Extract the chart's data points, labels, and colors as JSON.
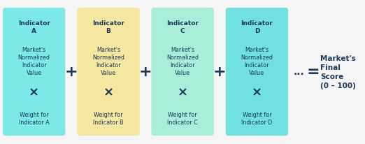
{
  "boxes": [
    {
      "label": "A",
      "color": "#7DE8E8",
      "title": "Indicator\nA",
      "body": "Market's\nNormalized\nIndicator\nValue",
      "times": "×",
      "weight": "Weight for\nIndicator A"
    },
    {
      "label": "B",
      "color": "#F5E6A0",
      "title": "Indicator\nB",
      "body": "Market's\nNormalized\nIndicator\nValue",
      "times": "×",
      "weight": "Weight for\nIndicator B"
    },
    {
      "label": "C",
      "color": "#A8EED8",
      "title": "Indicator\nC",
      "body": "Market's\nNormalized\nIndicator\nValue",
      "times": "×",
      "weight": "Weight for\nIndicator C"
    },
    {
      "label": "D",
      "color": "#70E0E0",
      "title": "Indicator\nD",
      "body": "Market's\nNormalized\nIndicator\nValue",
      "times": "×",
      "weight": "Weight for\nIndicator D"
    }
  ],
  "plus_color": "#1a3a5c",
  "result_text": "Market's\nFinal\nScore\n(0 – 100)",
  "result_color": "#1a3a5c",
  "dots_equals": "... =",
  "background": "#f5f5f5",
  "box_title_color": "#1a3a5c",
  "box_body_color": "#1a3a5c",
  "box_times_color": "#1a3a5c"
}
